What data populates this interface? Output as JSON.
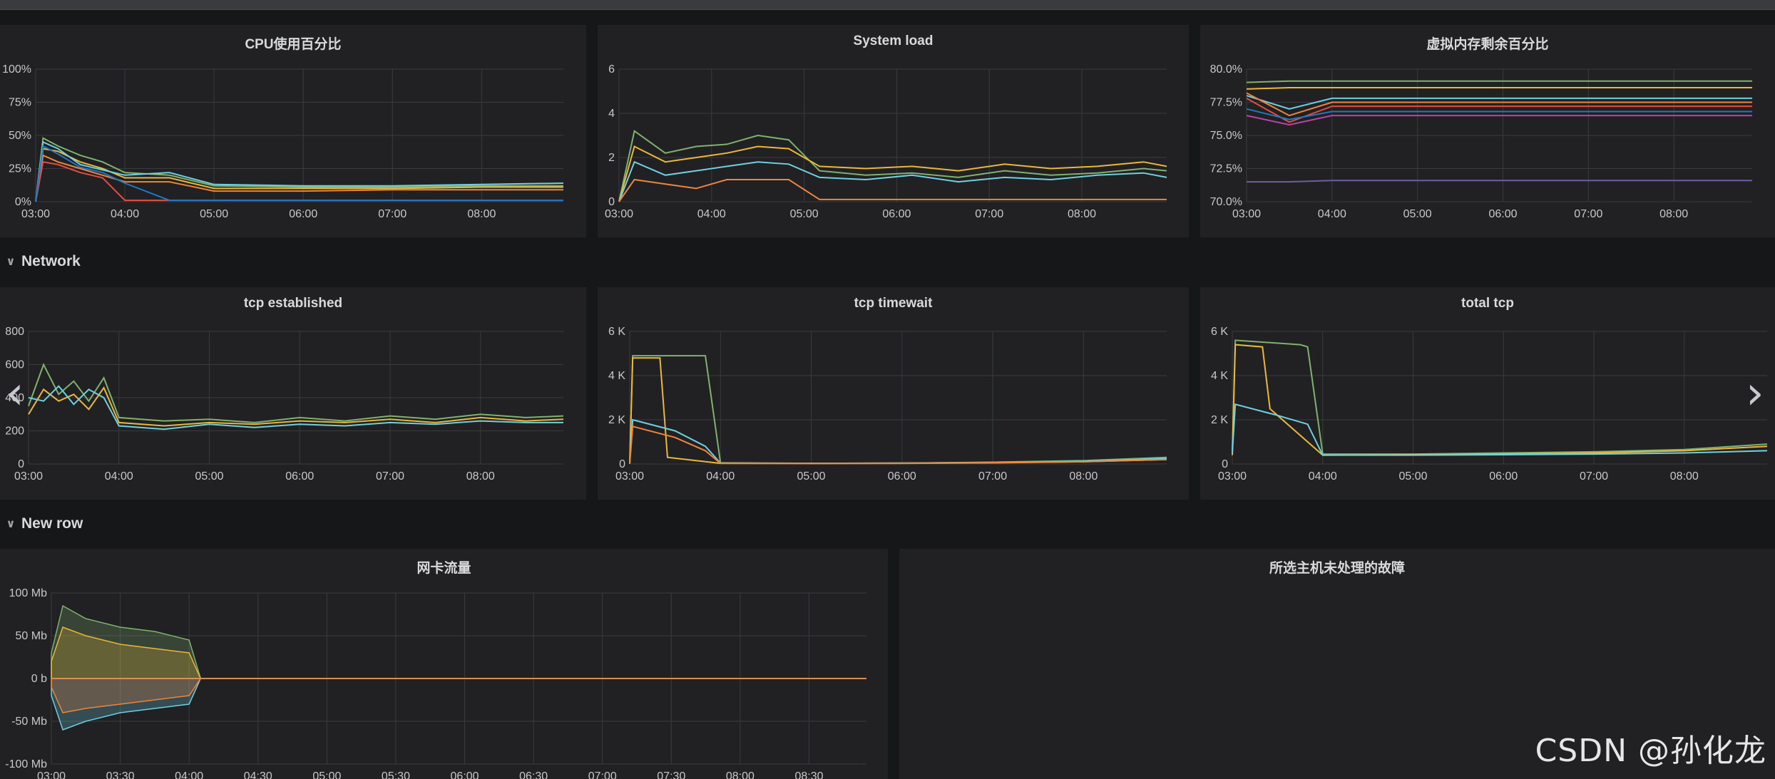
{
  "rows": {
    "network": {
      "label": "Network"
    },
    "new_row": {
      "label": "New row"
    }
  },
  "panels": {
    "empty": {
      "title": "所选主机未处理的故障"
    }
  },
  "navigation": {
    "prev_icon": "chevron-left-icon",
    "next_icon": "chevron-right-icon"
  },
  "watermark": "CSDN @孙化龙",
  "colors": {
    "background": "#161719",
    "panel": "#212124",
    "grid": "#3a3b3e",
    "series": [
      "#7eb26d",
      "#eab839",
      "#6ed0e0",
      "#ef843c",
      "#e24d42",
      "#1f78c1",
      "#ba43a9",
      "#705da0",
      "#508642",
      "#cca300",
      "#447ebc",
      "#c15c17",
      "#890f02",
      "#0a437c",
      "#6d1f62",
      "#e0f9d7",
      "#b7dbab",
      "#f4d598",
      "#70dbed",
      "#f9ba8f"
    ]
  },
  "chart_data": [
    {
      "id": "cpu",
      "type": "line",
      "title": "CPU使用百分比",
      "xticks": [
        "03:00",
        "04:00",
        "05:00",
        "06:00",
        "07:00",
        "08:00"
      ],
      "yticks": [
        "0%",
        "25%",
        "50%",
        "75%",
        "100%"
      ],
      "ylim": [
        0,
        100
      ],
      "series": [
        {
          "x": [
            "03:00",
            "03:05",
            "03:15",
            "03:30",
            "03:45",
            "04:00",
            "04:30",
            "05:00",
            "06:00",
            "07:00",
            "08:00",
            "08:55"
          ],
          "y": [
            0,
            48,
            42,
            35,
            30,
            22,
            20,
            12,
            11,
            11,
            12,
            12
          ]
        },
        {
          "x": [
            "03:00",
            "03:05",
            "03:15",
            "03:30",
            "03:45",
            "04:00",
            "04:30",
            "05:00",
            "06:00",
            "07:00",
            "08:00",
            "08:55"
          ],
          "y": [
            0,
            40,
            38,
            30,
            25,
            18,
            18,
            10,
            10,
            10,
            11,
            11
          ]
        },
        {
          "x": [
            "03:00",
            "03:05",
            "03:15",
            "03:30",
            "03:45",
            "04:00",
            "04:30",
            "05:00",
            "06:00",
            "07:00",
            "08:00",
            "08:55"
          ],
          "y": [
            0,
            45,
            40,
            28,
            24,
            20,
            22,
            13,
            12,
            12,
            13,
            14
          ]
        },
        {
          "x": [
            "03:00",
            "03:05",
            "03:15",
            "03:30",
            "03:45",
            "04:00",
            "04:30",
            "05:00",
            "06:00",
            "07:00",
            "08:00",
            "08:55"
          ],
          "y": [
            0,
            35,
            30,
            25,
            20,
            15,
            15,
            8,
            8,
            9,
            9,
            9
          ]
        },
        {
          "x": [
            "03:00",
            "03:05",
            "03:15",
            "03:30",
            "03:45",
            "04:00",
            "04:30",
            "05:00",
            "06:00",
            "07:00",
            "08:00",
            "08:55"
          ],
          "y": [
            0,
            30,
            28,
            22,
            18,
            1,
            1,
            1,
            1,
            1,
            1,
            1
          ]
        },
        {
          "x": [
            "03:00",
            "03:05",
            "03:15",
            "03:30",
            "03:45",
            "04:00",
            "04:30",
            "05:00",
            "06:00",
            "07:00",
            "08:00",
            "08:55"
          ],
          "y": [
            0,
            42,
            36,
            26,
            22,
            14,
            1,
            1,
            1,
            1,
            1,
            1
          ]
        }
      ]
    },
    {
      "id": "load",
      "type": "line",
      "title": "System load",
      "xticks": [
        "03:00",
        "04:00",
        "05:00",
        "06:00",
        "07:00",
        "08:00"
      ],
      "yticks": [
        "0",
        "2",
        "4",
        "6"
      ],
      "ylim": [
        0,
        6
      ],
      "series": [
        {
          "x": [
            "03:00",
            "03:10",
            "03:30",
            "03:50",
            "04:10",
            "04:30",
            "04:50",
            "05:10",
            "05:40",
            "06:10",
            "06:40",
            "07:10",
            "07:40",
            "08:10",
            "08:40",
            "08:55"
          ],
          "y": [
            0,
            3.2,
            2.2,
            2.5,
            2.6,
            3.0,
            2.8,
            1.4,
            1.2,
            1.3,
            1.1,
            1.4,
            1.2,
            1.3,
            1.5,
            1.4
          ]
        },
        {
          "x": [
            "03:00",
            "03:10",
            "03:30",
            "03:50",
            "04:10",
            "04:30",
            "04:50",
            "05:10",
            "05:40",
            "06:10",
            "06:40",
            "07:10",
            "07:40",
            "08:10",
            "08:40",
            "08:55"
          ],
          "y": [
            0,
            2.5,
            1.8,
            2.0,
            2.2,
            2.5,
            2.4,
            1.6,
            1.5,
            1.6,
            1.4,
            1.7,
            1.5,
            1.6,
            1.8,
            1.6
          ]
        },
        {
          "x": [
            "03:00",
            "03:10",
            "03:30",
            "03:50",
            "04:10",
            "04:30",
            "04:50",
            "05:10",
            "05:40",
            "06:10",
            "06:40",
            "07:10",
            "07:40",
            "08:10",
            "08:40",
            "08:55"
          ],
          "y": [
            0,
            1.8,
            1.2,
            1.4,
            1.6,
            1.8,
            1.7,
            1.1,
            1.0,
            1.2,
            0.9,
            1.1,
            1.0,
            1.2,
            1.3,
            1.1
          ]
        },
        {
          "x": [
            "03:00",
            "03:10",
            "03:30",
            "03:50",
            "04:10",
            "04:30",
            "04:50",
            "05:10",
            "05:40",
            "06:10",
            "06:40",
            "07:10",
            "07:40",
            "08:10",
            "08:40",
            "08:55"
          ],
          "y": [
            0,
            1.0,
            0.8,
            0.6,
            1.0,
            1.0,
            1.0,
            0.1,
            0.1,
            0.1,
            0.1,
            0.1,
            0.1,
            0.1,
            0.1,
            0.1
          ]
        }
      ]
    },
    {
      "id": "mem",
      "type": "line",
      "title": "虚拟内存剩余百分比",
      "xticks": [
        "03:00",
        "04:00",
        "05:00",
        "06:00",
        "07:00",
        "08:00"
      ],
      "yticks": [
        "70.0%",
        "72.5%",
        "75.0%",
        "77.5%",
        "80.0%"
      ],
      "ylim": [
        70,
        80
      ],
      "series": [
        {
          "x": [
            "03:00",
            "03:30",
            "04:00",
            "08:55"
          ],
          "y": [
            79.0,
            79.1,
            79.1,
            79.1
          ]
        },
        {
          "x": [
            "03:00",
            "03:30",
            "04:00",
            "08:55"
          ],
          "y": [
            78.5,
            78.6,
            78.6,
            78.6
          ]
        },
        {
          "x": [
            "03:00",
            "03:30",
            "04:00",
            "08:55"
          ],
          "y": [
            78.0,
            77.0,
            77.8,
            77.8
          ]
        },
        {
          "x": [
            "03:00",
            "03:30",
            "04:00",
            "08:55"
          ],
          "y": [
            78.2,
            76.5,
            77.5,
            77.5
          ]
        },
        {
          "x": [
            "03:00",
            "03:30",
            "04:00",
            "08:55"
          ],
          "y": [
            77.8,
            76.0,
            77.2,
            77.2
          ]
        },
        {
          "x": [
            "03:00",
            "03:30",
            "04:00",
            "08:55"
          ],
          "y": [
            77.0,
            76.2,
            76.8,
            76.8
          ]
        },
        {
          "x": [
            "03:00",
            "03:30",
            "04:00",
            "08:55"
          ],
          "y": [
            76.5,
            75.8,
            76.5,
            76.5
          ]
        },
        {
          "x": [
            "03:00",
            "03:30",
            "04:00",
            "08:55"
          ],
          "y": [
            71.5,
            71.5,
            71.6,
            71.6
          ]
        }
      ]
    },
    {
      "id": "tcp_est",
      "type": "line",
      "title": "tcp established",
      "xticks": [
        "03:00",
        "04:00",
        "05:00",
        "06:00",
        "07:00",
        "08:00"
      ],
      "yticks": [
        "0",
        "200",
        "400",
        "600",
        "800"
      ],
      "ylim": [
        0,
        800
      ],
      "series": [
        {
          "x": [
            "03:00",
            "03:10",
            "03:20",
            "03:30",
            "03:40",
            "03:50",
            "04:00",
            "04:30",
            "05:00",
            "05:30",
            "06:00",
            "06:30",
            "07:00",
            "07:30",
            "08:00",
            "08:30",
            "08:55"
          ],
          "y": [
            350,
            600,
            420,
            500,
            380,
            520,
            280,
            260,
            270,
            250,
            280,
            260,
            290,
            270,
            300,
            280,
            290
          ]
        },
        {
          "x": [
            "03:00",
            "03:10",
            "03:20",
            "03:30",
            "03:40",
            "03:50",
            "04:00",
            "04:30",
            "05:00",
            "05:30",
            "06:00",
            "06:30",
            "07:00",
            "07:30",
            "08:00",
            "08:30",
            "08:55"
          ],
          "y": [
            300,
            450,
            380,
            420,
            330,
            460,
            250,
            230,
            250,
            240,
            260,
            250,
            270,
            250,
            280,
            260,
            270
          ]
        },
        {
          "x": [
            "03:00",
            "03:10",
            "03:20",
            "03:30",
            "03:40",
            "03:50",
            "04:00",
            "04:30",
            "05:00",
            "05:30",
            "06:00",
            "06:30",
            "07:00",
            "07:30",
            "08:00",
            "08:30",
            "08:55"
          ],
          "y": [
            400,
            380,
            470,
            360,
            450,
            400,
            230,
            210,
            240,
            220,
            240,
            230,
            250,
            240,
            260,
            250,
            250
          ]
        }
      ]
    },
    {
      "id": "tcp_tw",
      "type": "line",
      "title": "tcp timewait",
      "xticks": [
        "03:00",
        "04:00",
        "05:00",
        "06:00",
        "07:00",
        "08:00"
      ],
      "yticks": [
        "0",
        "2 K",
        "4 K",
        "6 K"
      ],
      "ylim": [
        0,
        6000
      ],
      "series": [
        {
          "x": [
            "03:00",
            "03:02",
            "03:45",
            "03:50",
            "04:00",
            "05:00",
            "06:00",
            "07:00",
            "08:00",
            "08:55"
          ],
          "y": [
            0,
            4900,
            4900,
            4900,
            50,
            30,
            40,
            80,
            150,
            300
          ]
        },
        {
          "x": [
            "03:00",
            "03:02",
            "03:20",
            "03:25",
            "04:00",
            "05:00",
            "06:00",
            "07:00",
            "08:00",
            "08:55"
          ],
          "y": [
            0,
            4800,
            4800,
            300,
            30,
            30,
            30,
            50,
            100,
            200
          ]
        },
        {
          "x": [
            "03:00",
            "03:02",
            "03:30",
            "03:50",
            "04:00",
            "05:00",
            "06:00",
            "07:00",
            "08:00",
            "08:55"
          ],
          "y": [
            0,
            2000,
            1500,
            800,
            40,
            30,
            40,
            70,
            120,
            250
          ]
        },
        {
          "x": [
            "03:00",
            "03:02",
            "03:30",
            "03:50",
            "04:00",
            "05:00",
            "06:00",
            "07:00",
            "08:00",
            "08:55"
          ],
          "y": [
            0,
            1700,
            1200,
            600,
            30,
            20,
            30,
            60,
            100,
            200
          ]
        }
      ]
    },
    {
      "id": "tcp_total",
      "type": "line",
      "title": "total tcp",
      "xticks": [
        "03:00",
        "04:00",
        "05:00",
        "06:00",
        "07:00",
        "08:00"
      ],
      "yticks": [
        "0",
        "2 K",
        "4 K",
        "6 K"
      ],
      "ylim": [
        0,
        6000
      ],
      "series": [
        {
          "x": [
            "03:00",
            "03:02",
            "03:45",
            "03:50",
            "04:00",
            "05:00",
            "06:00",
            "07:00",
            "08:00",
            "08:55"
          ],
          "y": [
            500,
            5600,
            5400,
            5300,
            450,
            450,
            500,
            550,
            650,
            900
          ]
        },
        {
          "x": [
            "03:00",
            "03:02",
            "03:20",
            "03:25",
            "04:00",
            "05:00",
            "06:00",
            "07:00",
            "08:00",
            "08:55"
          ],
          "y": [
            400,
            5400,
            5300,
            2500,
            400,
            420,
            450,
            500,
            600,
            800
          ]
        },
        {
          "x": [
            "03:00",
            "03:02",
            "03:30",
            "03:50",
            "04:00",
            "05:00",
            "06:00",
            "07:00",
            "08:00",
            "08:55"
          ],
          "y": [
            500,
            2700,
            2200,
            1800,
            400,
            400,
            420,
            450,
            500,
            600
          ]
        }
      ]
    },
    {
      "id": "traffic",
      "type": "area",
      "title": "网卡流量",
      "xticks": [
        "03:00",
        "03:30",
        "04:00",
        "04:30",
        "05:00",
        "05:30",
        "06:00",
        "06:30",
        "07:00",
        "07:30",
        "08:00",
        "08:30"
      ],
      "yticks": [
        "-100 Mb",
        "-50 Mb",
        "0 b",
        "50 Mb",
        "100 Mb"
      ],
      "ylim": [
        -100,
        100
      ],
      "series": [
        {
          "x": [
            "03:00",
            "03:05",
            "03:15",
            "03:30",
            "03:45",
            "04:00",
            "04:05",
            "08:55"
          ],
          "y": [
            30,
            85,
            70,
            60,
            55,
            45,
            0,
            0
          ]
        },
        {
          "x": [
            "03:00",
            "03:05",
            "03:15",
            "03:30",
            "03:45",
            "04:00",
            "04:05",
            "08:55"
          ],
          "y": [
            20,
            60,
            50,
            40,
            35,
            30,
            0,
            0
          ]
        },
        {
          "x": [
            "03:00",
            "03:05",
            "03:15",
            "03:30",
            "03:45",
            "04:00",
            "04:05",
            "08:55"
          ],
          "y": [
            -20,
            -60,
            -50,
            -40,
            -35,
            -30,
            0,
            0
          ]
        },
        {
          "x": [
            "03:00",
            "03:05",
            "03:15",
            "03:30",
            "03:45",
            "04:00",
            "04:05",
            "08:55"
          ],
          "y": [
            -10,
            -40,
            -35,
            -30,
            -25,
            -20,
            0,
            0
          ]
        }
      ]
    }
  ]
}
